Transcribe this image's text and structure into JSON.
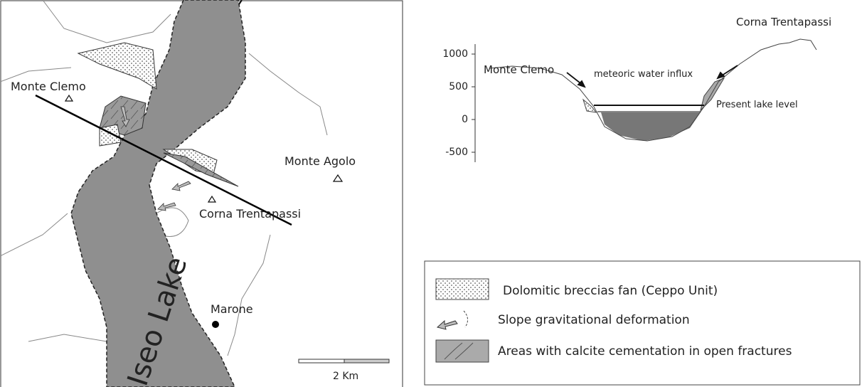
{
  "map": {
    "labels": {
      "monte_clemo": "Monte Clemo",
      "monte_agolo": "Monte Agolo",
      "corna_trentapassi": "Corna Trentapassi",
      "marone": "Marone",
      "lake": "Iseo Lake"
    },
    "scale": "2 Km"
  },
  "cross_section": {
    "yticks": [
      "1000",
      "500",
      "0",
      "-500"
    ],
    "peak_right": "Corna Trentapassi",
    "peak_left": "Monte Clemo",
    "influx": "meteoric water influx",
    "lake_level": "Present lake level"
  },
  "legend": {
    "items": [
      "Dolomitic breccias fan (Ceppo Unit)",
      "Slope gravitational deformation",
      "Areas with calcite cementation in open fractures"
    ]
  }
}
